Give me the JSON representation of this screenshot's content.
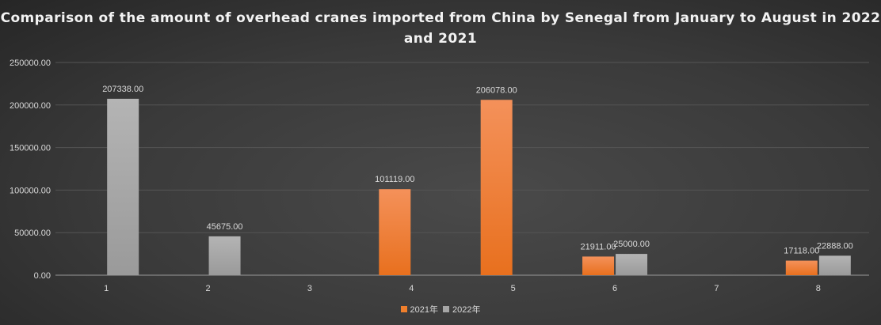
{
  "chart_data": {
    "type": "bar",
    "title": "Comparison of the amount of overhead cranes imported from China by Senegal from January to August in 2022 and 2021",
    "categories": [
      "1",
      "2",
      "3",
      "4",
      "5",
      "6",
      "7",
      "8"
    ],
    "series": [
      {
        "name": "2021年",
        "color": "#f07f2c",
        "values": [
          null,
          null,
          null,
          101119.0,
          206078.0,
          21911.0,
          null,
          17118.0
        ]
      },
      {
        "name": "2022年",
        "color": "#a6a6a6",
        "values": [
          207338.0,
          45675.0,
          null,
          null,
          null,
          25000.0,
          null,
          22888.0
        ]
      }
    ],
    "yticks": [
      "0.00",
      "50000.00",
      "100000.00",
      "150000.00",
      "200000.00",
      "250000.00"
    ],
    "ylim": [
      0,
      250000
    ],
    "grid": true,
    "legend": "bottom"
  }
}
